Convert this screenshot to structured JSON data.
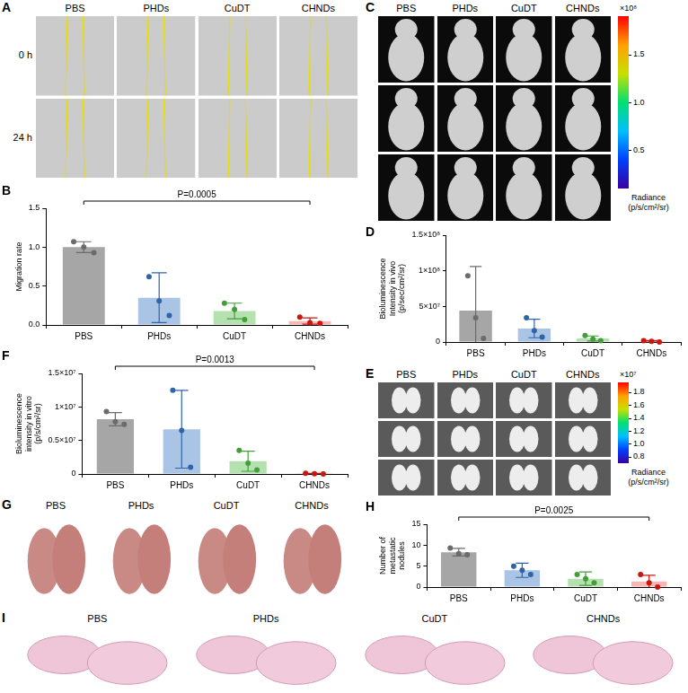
{
  "chart_data": [
    {
      "panel": "B",
      "type": "bar",
      "y_label": "Migration rate",
      "categories": [
        "PBS",
        "PHDs",
        "CuDT",
        "CHNDs"
      ],
      "values": [
        1.0,
        0.35,
        0.18,
        0.05
      ],
      "errors": [
        0.07,
        0.32,
        0.1,
        0.04
      ],
      "points": [
        [
          1.07,
          1.0,
          0.93
        ],
        [
          0.62,
          0.31,
          0.12
        ],
        [
          0.28,
          0.2,
          0.07
        ],
        [
          0.1,
          0.03,
          0.02
        ]
      ],
      "colors": [
        "#a6a6a6",
        "#a9c4e4",
        "#b5e0b0",
        "#f6b6b3"
      ],
      "ylim": [
        0,
        1.5
      ],
      "yticks": [
        {
          "value": 0,
          "label": "0.0"
        },
        0.5,
        {
          "value": 1,
          "label": "1.0"
        },
        1.5
      ],
      "grid": false,
      "annotation": {
        "text": "P=0.0005",
        "between": [
          "PBS",
          "CHNDs"
        ]
      }
    },
    {
      "panel": "D",
      "type": "bar",
      "y_label": "Bioluminescence Intensity in vivo (p/sec/cm²/sr)",
      "categories": [
        "PBS",
        "PHDs",
        "CuDT",
        "CHNDs"
      ],
      "values": [
        44000000,
        19000000,
        5000000,
        1000000
      ],
      "errors": [
        62000000,
        13000000,
        3500000,
        1000000
      ],
      "points": [
        [
          93000000,
          34000000,
          5000000
        ],
        [
          34000000,
          16000000,
          7000000
        ],
        [
          9000000,
          4000000,
          2000000
        ],
        [
          2000000,
          1000000,
          0
        ]
      ],
      "colors": [
        "#a6a6a6",
        "#a9c4e4",
        "#b5e0b0",
        "#f6b6b3"
      ],
      "ylim": [
        0,
        150000000
      ],
      "yticks": [
        0,
        {
          "value": 50000000,
          "label": "5×10⁷"
        },
        {
          "value": 100000000,
          "label": "1×10⁸"
        },
        {
          "value": 150000000,
          "label": "1.5×10⁸"
        }
      ],
      "grid": false
    },
    {
      "panel": "F",
      "type": "bar",
      "y_label": "Bioluminescence intensity in vitro (p/s/cm²/sr)",
      "categories": [
        "PBS",
        "PHDs",
        "CuDT",
        "CHNDs"
      ],
      "values": [
        8170000,
        6670000,
        1900000,
        50000
      ],
      "errors": [
        1000000,
        5800000,
        1500000,
        50000
      ],
      "points": [
        [
          9300000,
          7800000,
          7400000
        ],
        [
          12500000,
          6500000,
          1000000
        ],
        [
          3500000,
          1600000,
          600000
        ],
        [
          100000,
          50000,
          0
        ]
      ],
      "colors": [
        "#a6a6a6",
        "#a9c4e4",
        "#b5e0b0",
        "#f6b6b3"
      ],
      "ylim": [
        0,
        15000000
      ],
      "yticks": [
        0,
        {
          "value": 5000000,
          "label": "0.5×10⁷"
        },
        {
          "value": 10000000,
          "label": "1×10⁷"
        },
        {
          "value": 15000000,
          "label": "1.5×10⁷"
        }
      ],
      "grid": false,
      "annotation": {
        "text": "P=0.0013",
        "between": [
          "PBS",
          "CHNDs"
        ]
      }
    },
    {
      "panel": "H",
      "type": "bar",
      "y_label": "Number of metastatic nodules",
      "categories": [
        "PBS",
        "PHDs",
        "CuDT",
        "CHNDs"
      ],
      "values": [
        8.33,
        4,
        2,
        1.33
      ],
      "errors": [
        0.9,
        1.7,
        1.6,
        1.5
      ],
      "points": [
        [
          9.3,
          8,
          7.7
        ],
        [
          5,
          4,
          3
        ],
        [
          3,
          2,
          1
        ],
        [
          3,
          1,
          0
        ]
      ],
      "colors": [
        "#a6a6a6",
        "#a9c4e4",
        "#b5e0b0",
        "#f6b6b3"
      ],
      "ylim": [
        0,
        15
      ],
      "yticks": [
        0,
        5,
        10,
        15
      ],
      "grid": false,
      "annotation": {
        "text": "P=0.0025",
        "between": [
          "PBS",
          "CHNDs"
        ]
      }
    }
  ],
  "image_panels": [
    {
      "letter": "A",
      "type": "image_grid",
      "columns": [
        "PBS",
        "PHDs",
        "CuDT",
        "CHNDs"
      ],
      "rows": [
        "0 h",
        "24 h"
      ]
    },
    {
      "letter": "C",
      "type": "image_grid",
      "columns": [
        "PBS",
        "PHDs",
        "CuDT",
        "CHNDs"
      ],
      "rows": 3,
      "colorbar": {
        "range": [
          0.1,
          1.9
        ],
        "ticks": [
          0.5,
          {
            "value": 1,
            "label": "1.0"
          },
          1.5
        ],
        "multiplier": "×10⁸",
        "title": "Radiance (p/s/cm²/sr)"
      }
    },
    {
      "letter": "E",
      "type": "image_grid",
      "columns": [
        "PBS",
        "PHDs",
        "CuDT",
        "CHNDs"
      ],
      "rows": 3,
      "colorbar": {
        "range": [
          0.7,
          1.95
        ],
        "ticks": [
          0.8,
          {
            "value": 1,
            "label": "1.0"
          },
          1.2,
          1.4,
          1.6,
          1.8
        ],
        "multiplier": "×10⁷",
        "title": "Radiance (p/s/cm²/sr)"
      }
    },
    {
      "letter": "G",
      "type": "image_grid",
      "columns": [
        "PBS",
        "PHDs",
        "CuDT",
        "CHNDs"
      ],
      "rows": 1
    },
    {
      "letter": "I",
      "type": "image_grid",
      "columns": [
        "PBS",
        "PHDs",
        "CuDT",
        "CHNDs"
      ],
      "rows": 1
    }
  ]
}
